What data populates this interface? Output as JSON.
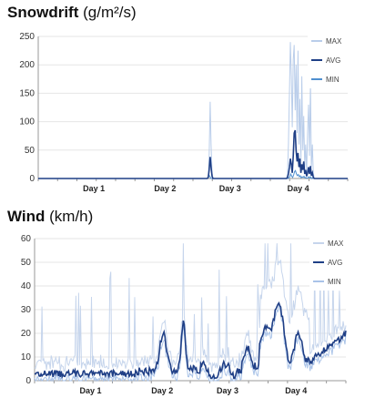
{
  "colors": {
    "max": "#b9cdea",
    "avg": "#1f3f86",
    "min": "#4f8fd0",
    "axis": "#999999",
    "grid": "#e6e6e6"
  },
  "chart_data": [
    {
      "type": "line",
      "title_main": "Snowdrift",
      "title_unit": "(g/m²/s)",
      "xlabel": "",
      "ylabel": "",
      "x_ticks": [
        "Day 1",
        "Day 2",
        "Day 3",
        "Day 4"
      ],
      "ylim": [
        0,
        250
      ],
      "yticks": [
        0,
        50,
        100,
        150,
        200,
        250
      ],
      "grid": true,
      "legend_position": "top-right",
      "series": [
        {
          "name": "MAX",
          "color": "#b9cdea",
          "values": [
            0,
            0,
            0,
            0,
            0,
            0,
            0,
            0,
            0,
            0,
            0,
            0,
            0,
            0,
            0,
            0,
            0,
            0,
            0,
            0,
            0,
            0,
            0,
            0,
            0,
            0,
            0,
            0,
            0,
            0,
            0,
            0,
            0,
            0,
            0,
            0,
            0,
            0,
            0,
            0,
            0,
            0,
            0,
            0,
            0,
            0,
            0,
            0,
            0,
            0,
            0,
            0,
            0,
            0,
            0,
            0,
            0,
            0,
            0,
            0,
            0,
            0,
            0,
            0,
            0,
            0,
            0,
            0,
            0,
            0,
            0,
            0,
            0,
            0,
            0,
            0,
            0,
            0,
            0,
            0,
            0,
            0,
            0,
            0,
            0,
            0,
            0,
            0,
            0,
            0,
            0,
            0,
            0,
            0,
            0,
            0,
            0,
            0,
            0,
            0,
            0,
            0,
            0,
            0,
            0,
            0,
            0,
            0,
            0,
            0,
            0,
            0,
            0,
            0,
            0,
            0,
            0,
            0,
            0,
            0,
            0,
            0,
            0,
            0,
            0,
            0,
            0,
            0,
            0,
            0,
            0,
            0,
            0,
            0,
            0,
            0,
            0,
            0,
            0,
            0,
            0,
            0,
            0,
            0,
            0,
            0,
            0,
            0,
            0,
            0,
            0,
            0,
            0,
            0,
            0,
            0,
            0,
            0,
            0,
            0,
            0,
            0,
            0,
            0,
            0,
            0,
            0,
            0,
            0,
            0,
            0,
            0,
            0,
            0,
            0,
            0,
            0,
            0,
            5,
            40,
            135,
            60,
            10,
            0,
            0,
            0,
            0,
            0,
            0,
            0,
            0,
            0,
            0,
            0,
            0,
            0,
            0,
            0,
            0,
            0,
            0,
            0,
            0,
            0,
            0,
            0,
            0,
            0,
            0,
            0,
            0,
            0,
            0,
            0,
            0,
            0,
            0,
            0,
            0,
            0,
            0,
            0,
            0,
            0,
            0,
            0,
            0,
            0,
            0,
            0,
            0,
            0,
            0,
            0,
            0,
            0,
            0,
            0,
            0,
            0,
            0,
            0,
            0,
            0,
            0,
            0,
            0,
            0,
            0,
            0,
            0,
            0,
            0,
            0,
            0,
            0,
            0,
            0,
            0,
            0,
            0,
            10,
            60,
            150,
            240,
            180,
            90,
            210,
            235,
            120,
            200,
            80,
            225,
            60,
            140,
            30,
            180,
            50,
            110,
            20,
            60,
            10,
            80,
            130,
            40,
            170,
            20,
            60,
            10,
            0,
            0,
            0,
            0,
            0,
            0,
            0,
            0,
            0,
            0,
            0,
            0,
            0,
            0,
            0,
            0,
            0,
            0,
            0,
            0,
            0,
            0,
            0,
            0,
            0,
            0,
            0,
            0,
            0,
            0,
            0,
            0,
            0,
            0,
            0,
            0
          ]
        },
        {
          "name": "AVG",
          "color": "#1f3f86",
          "values": [
            0,
            0,
            0,
            0,
            0,
            0,
            0,
            0,
            0,
            0,
            0,
            0,
            0,
            0,
            0,
            0,
            0,
            0,
            0,
            0,
            0,
            0,
            0,
            0,
            0,
            0,
            0,
            0,
            0,
            0,
            0,
            0,
            0,
            0,
            0,
            0,
            0,
            0,
            0,
            0,
            0,
            0,
            0,
            0,
            0,
            0,
            0,
            0,
            0,
            0,
            0,
            0,
            0,
            0,
            0,
            0,
            0,
            0,
            0,
            0,
            0,
            0,
            0,
            0,
            0,
            0,
            0,
            0,
            0,
            0,
            0,
            0,
            0,
            0,
            0,
            0,
            0,
            0,
            0,
            0,
            0,
            0,
            0,
            0,
            0,
            0,
            0,
            0,
            0,
            0,
            0,
            0,
            0,
            0,
            0,
            0,
            0,
            0,
            0,
            0,
            0,
            0,
            0,
            0,
            0,
            0,
            0,
            0,
            0,
            0,
            0,
            0,
            0,
            0,
            0,
            0,
            0,
            0,
            0,
            0,
            0,
            0,
            0,
            0,
            0,
            0,
            0,
            0,
            0,
            0,
            0,
            0,
            0,
            0,
            0,
            0,
            0,
            0,
            0,
            0,
            0,
            0,
            0,
            0,
            0,
            0,
            0,
            0,
            0,
            0,
            0,
            0,
            0,
            0,
            0,
            0,
            0,
            0,
            0,
            0,
            0,
            0,
            0,
            0,
            0,
            0,
            0,
            0,
            0,
            0,
            0,
            0,
            0,
            0,
            0,
            0,
            0,
            0,
            2,
            15,
            38,
            20,
            4,
            0,
            0,
            0,
            0,
            0,
            0,
            0,
            0,
            0,
            0,
            0,
            0,
            0,
            0,
            0,
            0,
            0,
            0,
            0,
            0,
            0,
            0,
            0,
            0,
            0,
            0,
            0,
            0,
            0,
            0,
            0,
            0,
            0,
            0,
            0,
            0,
            0,
            0,
            0,
            0,
            0,
            0,
            0,
            0,
            0,
            0,
            0,
            0,
            0,
            0,
            0,
            0,
            0,
            0,
            0,
            0,
            0,
            0,
            0,
            0,
            0,
            0,
            0,
            0,
            0,
            0,
            0,
            0,
            0,
            0,
            0,
            0,
            0,
            0,
            0,
            0,
            0,
            0,
            2,
            8,
            20,
            35,
            25,
            10,
            40,
            80,
            85,
            50,
            30,
            45,
            20,
            35,
            10,
            25,
            15,
            30,
            8,
            15,
            4,
            10,
            20,
            8,
            22,
            5,
            10,
            2,
            0,
            0,
            0,
            0,
            0,
            0,
            0,
            0,
            0,
            0,
            0,
            0,
            0,
            0,
            0,
            0,
            0,
            0,
            0,
            0,
            0,
            0,
            0,
            0,
            0,
            0,
            0,
            0,
            0,
            0,
            0,
            0,
            0,
            0,
            0,
            0
          ]
        },
        {
          "name": "MIN",
          "color": "#4f8fd0",
          "values": [
            0,
            0,
            0,
            0,
            0,
            0,
            0,
            0,
            0,
            0,
            0,
            0,
            0,
            0,
            0,
            0,
            0,
            0,
            0,
            0,
            0,
            0,
            0,
            0,
            0,
            0,
            0,
            0,
            0,
            0,
            0,
            0,
            0,
            0,
            0,
            0,
            0,
            0,
            0,
            0,
            0,
            0,
            0,
            0,
            0,
            0,
            0,
            0,
            0,
            0,
            0,
            0,
            0,
            0,
            0,
            0,
            0,
            0,
            0,
            0,
            0,
            0,
            0,
            0,
            0,
            0,
            0,
            0,
            0,
            0,
            0,
            0,
            0,
            0,
            0,
            0,
            0,
            0,
            0,
            0,
            0,
            0,
            0,
            0,
            0,
            0,
            0,
            0,
            0,
            0,
            0,
            0,
            0,
            0,
            0,
            0,
            0,
            0,
            0,
            0,
            0,
            0,
            0,
            0,
            0,
            0,
            0,
            0,
            0,
            0,
            0,
            0,
            0,
            0,
            0,
            0,
            0,
            0,
            0,
            0,
            0,
            0,
            0,
            0,
            0,
            0,
            0,
            0,
            0,
            0,
            0,
            0,
            0,
            0,
            0,
            0,
            0,
            0,
            0,
            0,
            0,
            0,
            0,
            0,
            0,
            0,
            0,
            0,
            0,
            0,
            0,
            0,
            0,
            0,
            0,
            0,
            0,
            0,
            0,
            0,
            0,
            0,
            0,
            0,
            0,
            0,
            0,
            0,
            0,
            0,
            0,
            0,
            0,
            0,
            0,
            0,
            0,
            0,
            0,
            2,
            6,
            3,
            0,
            0,
            0,
            0,
            0,
            0,
            0,
            0,
            0,
            0,
            0,
            0,
            0,
            0,
            0,
            0,
            0,
            0,
            0,
            0,
            0,
            0,
            0,
            0,
            0,
            0,
            0,
            0,
            0,
            0,
            0,
            0,
            0,
            0,
            0,
            0,
            0,
            0,
            0,
            0,
            0,
            0,
            0,
            0,
            0,
            0,
            0,
            0,
            0,
            0,
            0,
            0,
            0,
            0,
            0,
            0,
            0,
            0,
            0,
            0,
            0,
            0,
            0,
            0,
            0,
            0,
            0,
            0,
            0,
            0,
            0,
            0,
            0,
            0,
            0,
            0,
            0,
            0,
            0,
            0,
            0,
            0,
            1,
            3,
            8,
            4,
            2,
            6,
            12,
            14,
            8,
            5,
            7,
            3,
            5,
            1,
            3,
            2,
            4,
            1,
            2,
            0,
            1,
            3,
            1,
            3,
            0,
            1,
            0,
            0,
            0,
            0,
            0,
            0,
            0,
            0,
            0,
            0,
            0,
            0,
            0,
            0,
            0,
            0,
            0,
            0,
            0,
            0,
            0,
            0,
            0,
            0,
            0,
            0,
            0,
            0,
            0,
            0,
            0,
            0,
            0,
            0,
            0,
            0,
            0
          ]
        }
      ]
    },
    {
      "type": "line",
      "title_main": "Wind",
      "title_unit": "(km/h)",
      "xlabel": "",
      "ylabel": "",
      "x_ticks": [
        "Day 1",
        "Day 2",
        "Day 3",
        "Day 4"
      ],
      "ylim": [
        0,
        60
      ],
      "yticks": [
        0,
        10,
        20,
        30,
        40,
        50,
        60
      ],
      "grid": true,
      "legend_position": "top-right",
      "series": [
        {
          "name": "MAX",
          "color": "#c6d5ec",
          "values": []
        },
        {
          "name": "AVG",
          "color": "#1f3f86",
          "values": []
        },
        {
          "name": "MIN",
          "color": "#a9c3e8",
          "values": []
        }
      ]
    }
  ]
}
